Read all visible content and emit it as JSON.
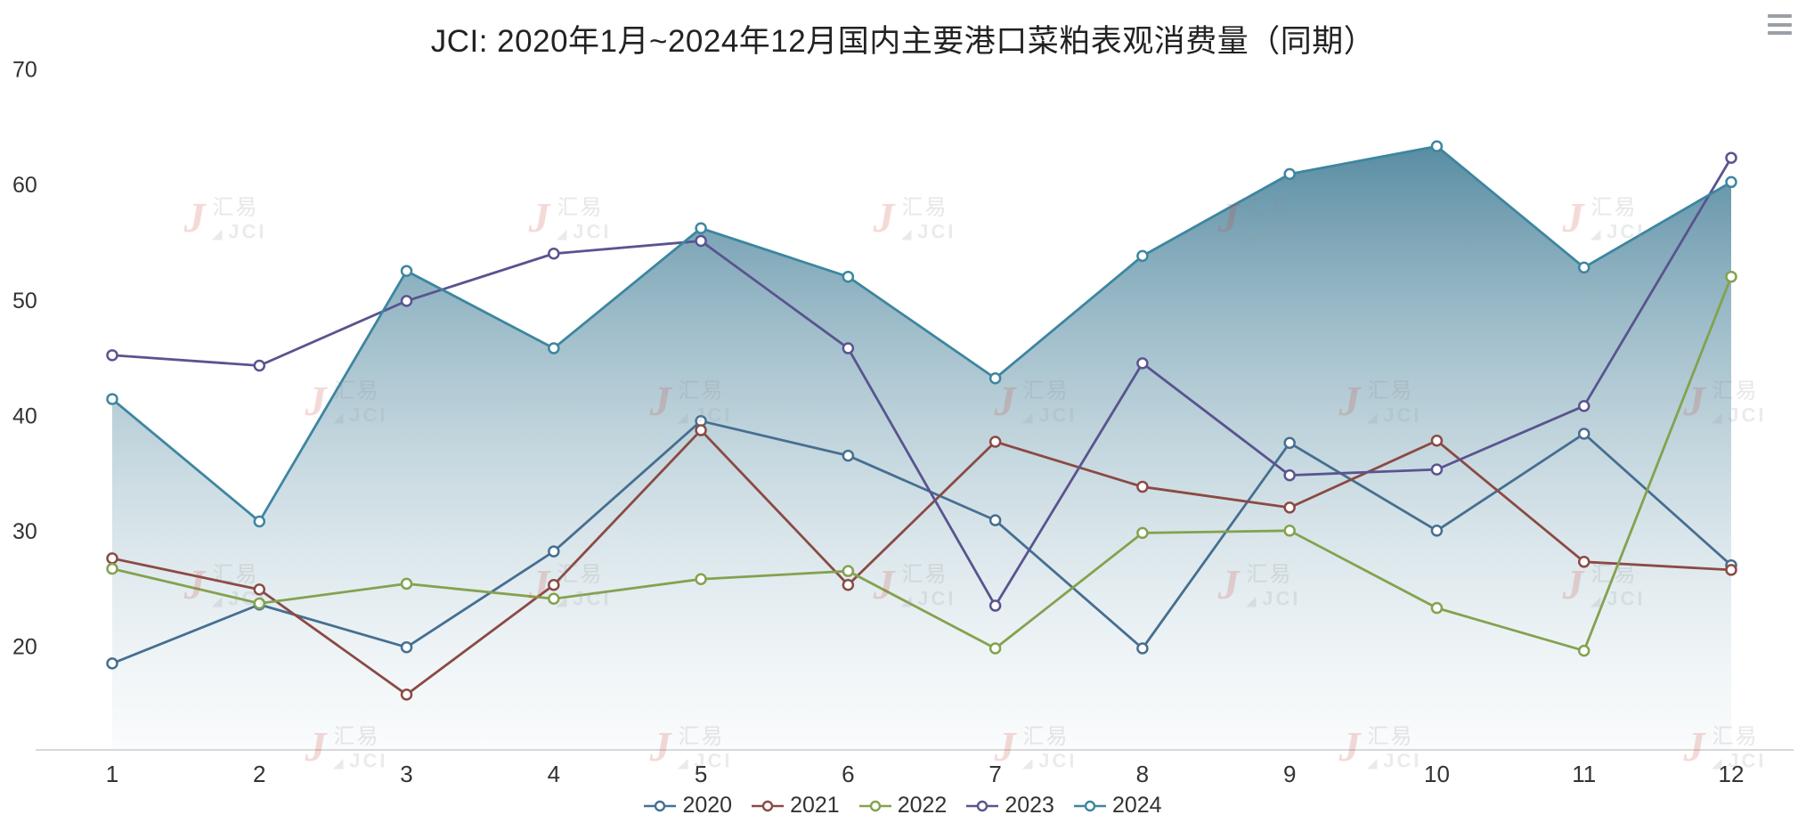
{
  "header": {
    "title": "JCI: 2020年1月~2024年12月国内主要港口菜粕表观消费量（同期）",
    "menu_icon": "hamburger-menu"
  },
  "watermark": {
    "logo_letter": "J",
    "triangle": "◢",
    "brand_cn": "汇易",
    "brand_en": "JCI"
  },
  "colors": {
    "axis_line": "#cccccc",
    "tick_label": "#333333",
    "title_text": "#222222",
    "legend_label": "#333333",
    "watermark_red": "#cc4a3e",
    "watermark_gray": "#8f979c",
    "area_gradient_top": "#427d96",
    "area_gradient_bottom": "#e9f1f4"
  },
  "chart_data": {
    "type": "line",
    "title": "JCI: 2020年1月~2024年12月国内主要港口菜粕表观消费量（同期）",
    "x": [
      "1",
      "2",
      "3",
      "4",
      "5",
      "6",
      "7",
      "8",
      "9",
      "10",
      "11",
      "12"
    ],
    "xlabel": "",
    "ylabel": "",
    "ylim": [
      11.2,
      70
    ],
    "yticks": [
      70,
      60,
      50,
      40,
      30,
      20
    ],
    "grid": false,
    "legend_position": "bottom",
    "series": [
      {
        "name": "2020",
        "type": "line",
        "color": "#466f91",
        "values": [
          18.7,
          23.8,
          20.1,
          28.4,
          39.7,
          36.7,
          31.1,
          20.0,
          37.8,
          30.2,
          38.6,
          27.2
        ]
      },
      {
        "name": "2021",
        "type": "line",
        "color": "#8b4a44",
        "values": [
          27.8,
          25.1,
          16.0,
          25.5,
          38.9,
          25.5,
          37.9,
          34.0,
          32.2,
          38.0,
          27.5,
          26.8
        ]
      },
      {
        "name": "2022",
        "type": "line",
        "color": "#83a24e",
        "values": [
          26.9,
          23.9,
          25.6,
          24.3,
          26.0,
          26.7,
          20.0,
          30.0,
          30.2,
          23.5,
          19.8,
          52.2
        ]
      },
      {
        "name": "2023",
        "type": "line",
        "color": "#59548f",
        "values": [
          45.4,
          44.5,
          50.1,
          54.2,
          55.3,
          46.0,
          23.7,
          44.7,
          35.0,
          35.5,
          41.0,
          62.5
        ]
      },
      {
        "name": "2024",
        "type": "area",
        "color": "#3d86a0",
        "values": [
          41.6,
          31.0,
          52.7,
          46.0,
          56.4,
          52.2,
          43.4,
          54.0,
          61.1,
          63.5,
          53.0,
          60.4
        ]
      }
    ]
  }
}
